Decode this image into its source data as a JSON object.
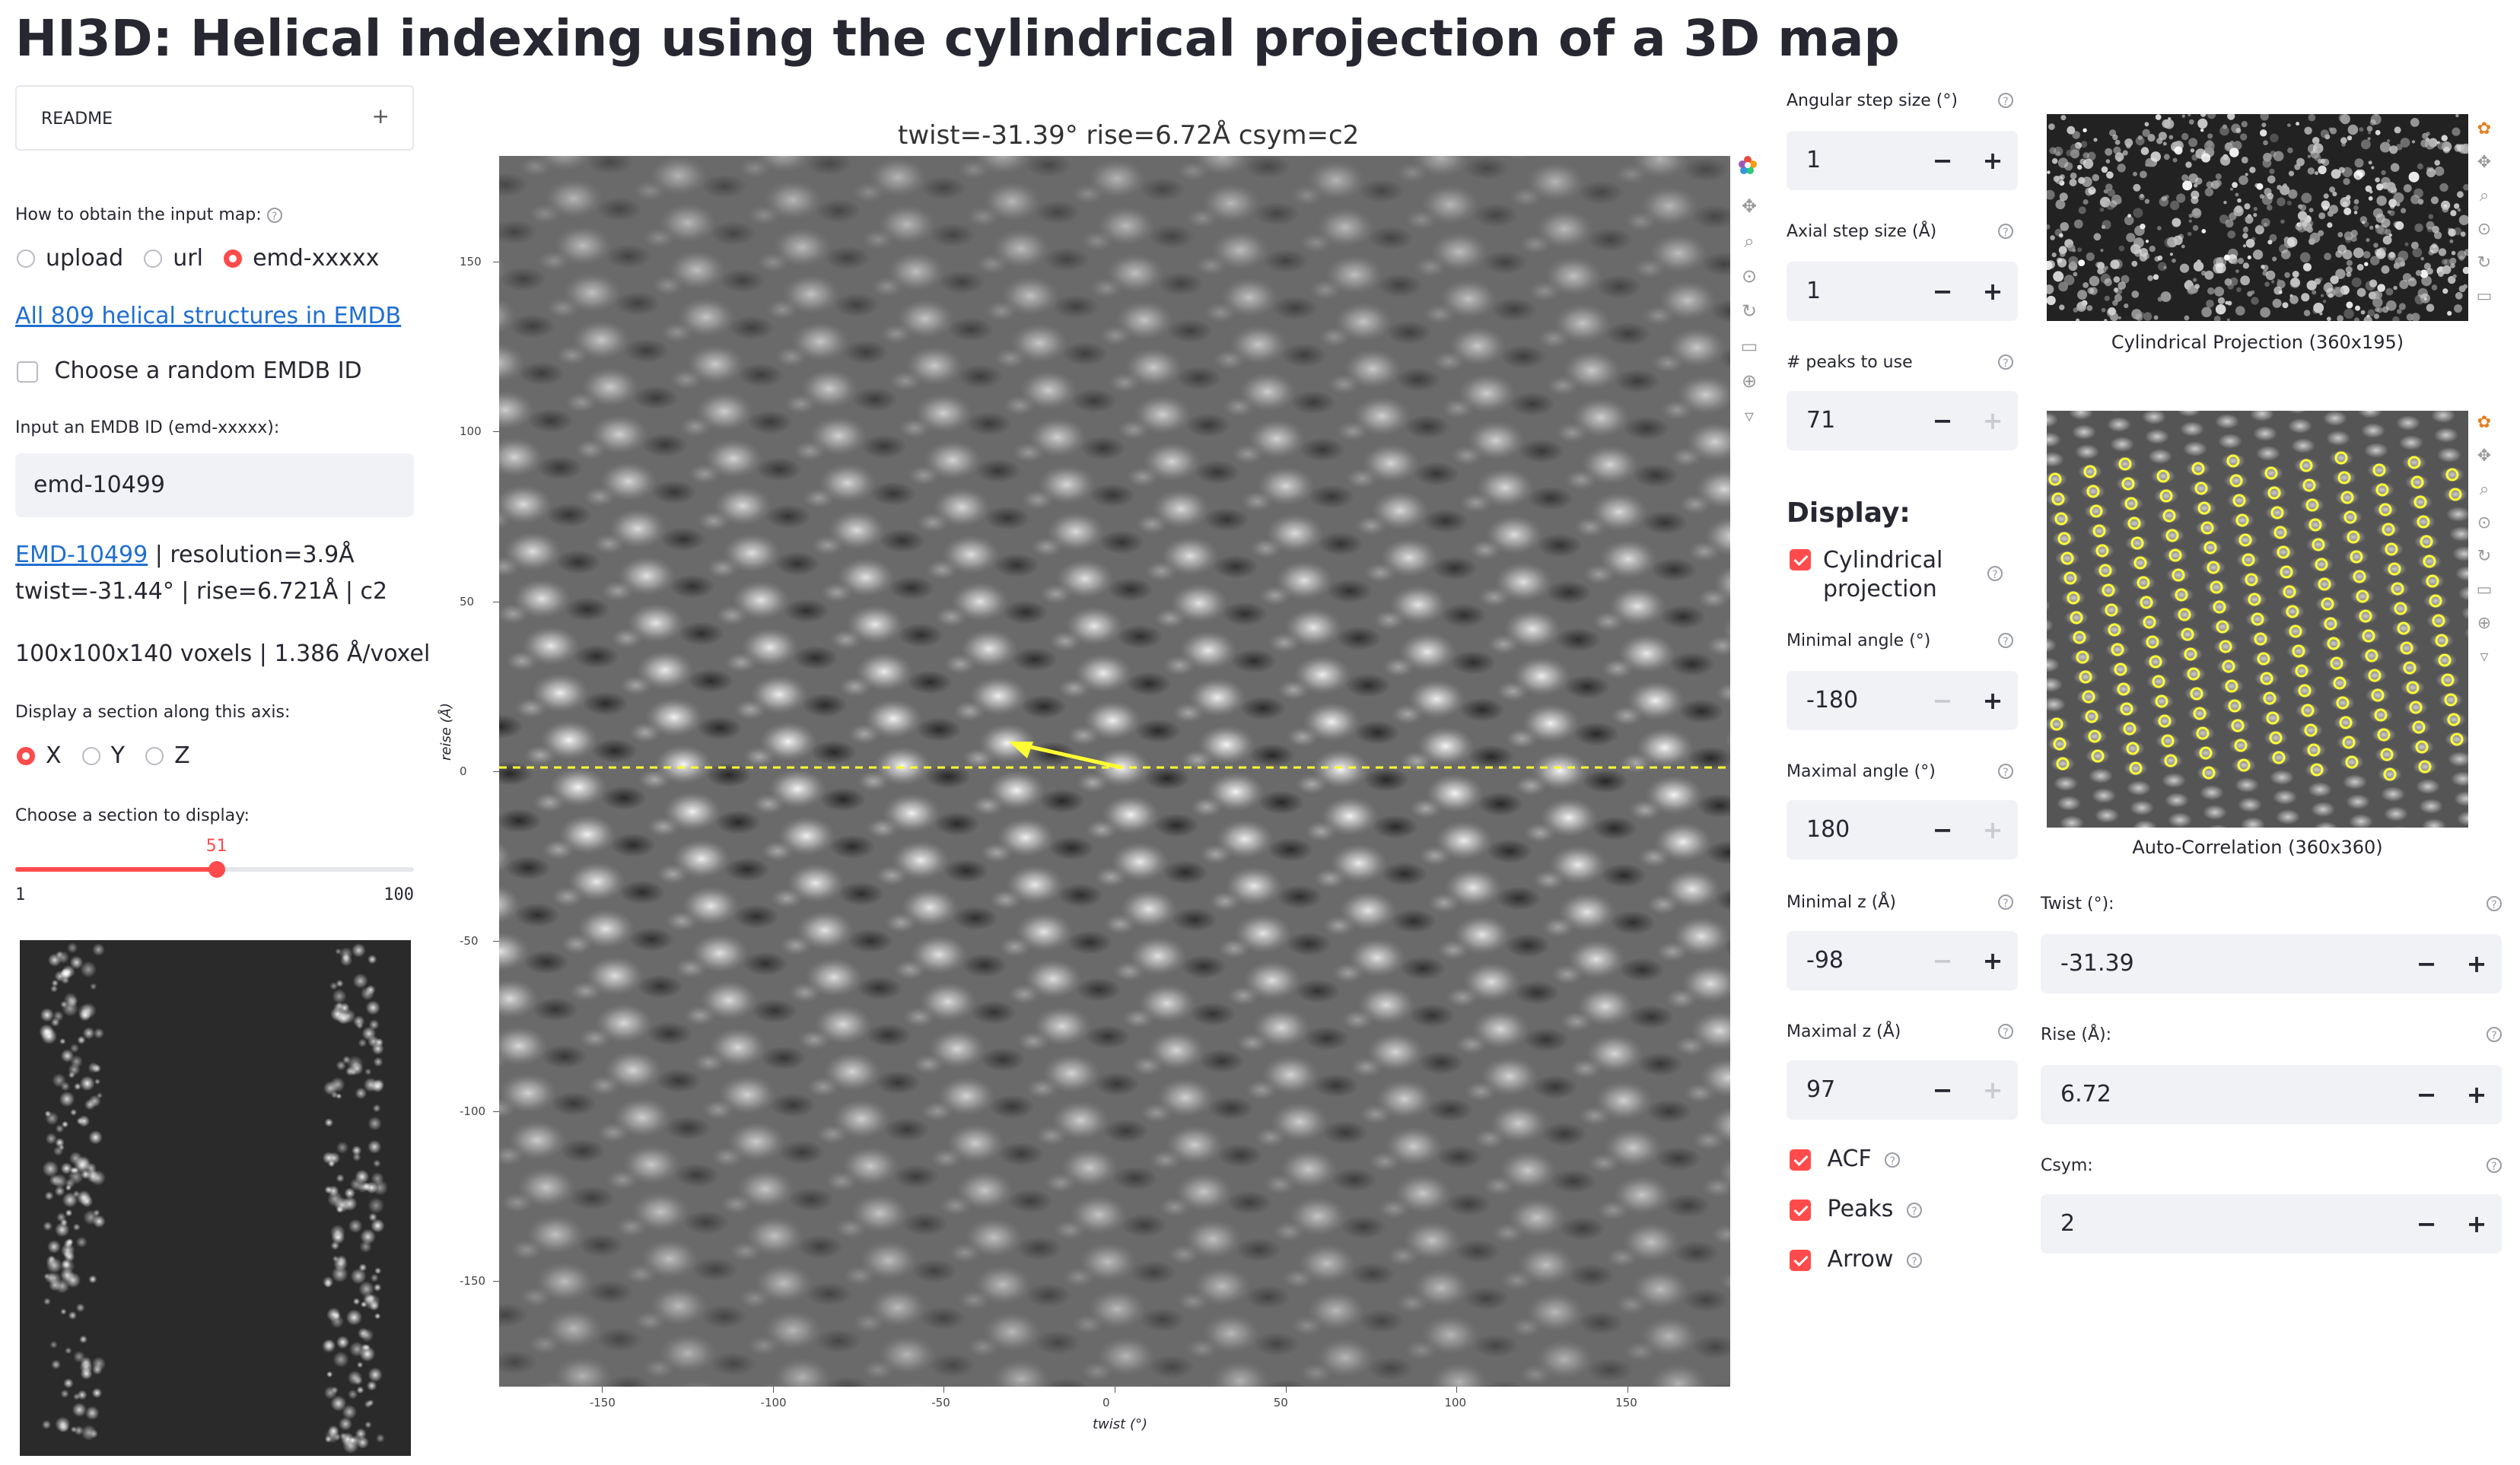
{
  "app": {
    "title": "HI3D: Helical indexing using the cylindrical projection of a 3D map"
  },
  "sidebar": {
    "readme_label": "README",
    "input_method_label": "How to obtain the input map:",
    "input_methods": [
      "upload",
      "url",
      "emd-xxxxx"
    ],
    "input_method_selected": "emd-xxxxx",
    "emdb_link": "All 809 helical structures in EMDB",
    "random_label": "Choose a random EMDB ID",
    "emdb_id_label": "Input an EMDB ID (emd-xxxxx):",
    "emdb_id_value": "emd-10499",
    "entry_link": "EMD-10499",
    "entry_resolution": " | resolution=3.9Å",
    "entry_params": "twist=-31.44° | rise=6.721Å | c2",
    "voxels": "100x100x140 voxels | 1.386 Å/voxel",
    "axis_label": "Display a section along this axis:",
    "axes": [
      "X",
      "Y",
      "Z"
    ],
    "axis_selected": "X",
    "section_label": "Choose a section to display:",
    "section_value": "51",
    "section_min": "1",
    "section_max": "100",
    "section_fraction": 0.505
  },
  "main_plot": {
    "title": "twist=-31.39°  rise=6.72Å  csym=c2",
    "xlabel": "twist (°)",
    "ylabel": "reise (Å)",
    "x_ticks": [
      "-150",
      "-100",
      "-50",
      "0",
      "50",
      "100",
      "150"
    ],
    "y_ticks": [
      "150",
      "100",
      "50",
      "0",
      "-50",
      "-100",
      "-150"
    ]
  },
  "controls": {
    "angular_step": {
      "label": "Angular step size (°)",
      "value": "1"
    },
    "axial_step": {
      "label": "Axial step size (Å)",
      "value": "1"
    },
    "peaks_to_use": {
      "label": "# peaks to use",
      "value": "71"
    },
    "display_heading": "Display:",
    "cyl_proj_label": "Cylindrical projection",
    "min_angle": {
      "label": "Minimal angle (°)",
      "value": "-180"
    },
    "max_angle": {
      "label": "Maximal angle (°)",
      "value": "180"
    },
    "min_z": {
      "label": "Minimal z (Å)",
      "value": "-98"
    },
    "max_z": {
      "label": "Maximal z (Å)",
      "value": "97"
    },
    "acf_label": "ACF",
    "peaks_label": "Peaks",
    "arrow_label": "Arrow"
  },
  "right_panel": {
    "cyl_caption": "Cylindrical Projection (360x195)",
    "acf_caption": "Auto-Correlation (360x360)",
    "twist": {
      "label": "Twist (°):",
      "value": "-31.39"
    },
    "rise": {
      "label": "Rise (Å):",
      "value": "6.72"
    },
    "csym": {
      "label": "Csym:",
      "value": "2"
    }
  },
  "colors": {
    "accent": "#ff4b4b",
    "link": "#1f6fd1",
    "arrow": "#ffff33"
  }
}
